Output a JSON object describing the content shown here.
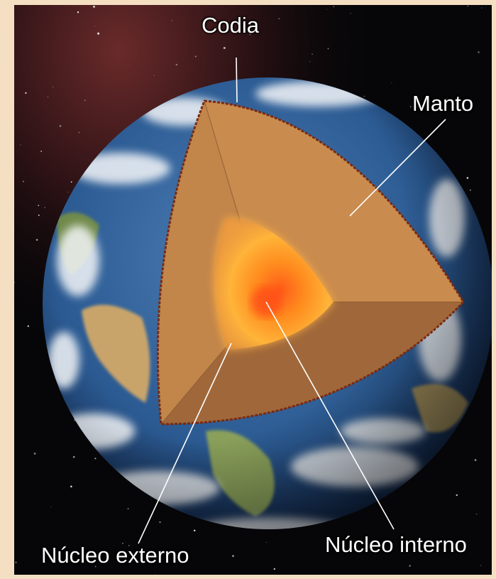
{
  "labels": {
    "crust": "Codia",
    "mantle": "Manto",
    "outer_core": "Núcleo externo",
    "inner_core": "Núcleo interno"
  },
  "colors": {
    "page_background": "#f5dfc3",
    "space": "#060608",
    "mantle": "#c98b4e",
    "crust_edge": "#7a2a10",
    "core": "#ff9a1a",
    "label_text": "#ffffff"
  }
}
